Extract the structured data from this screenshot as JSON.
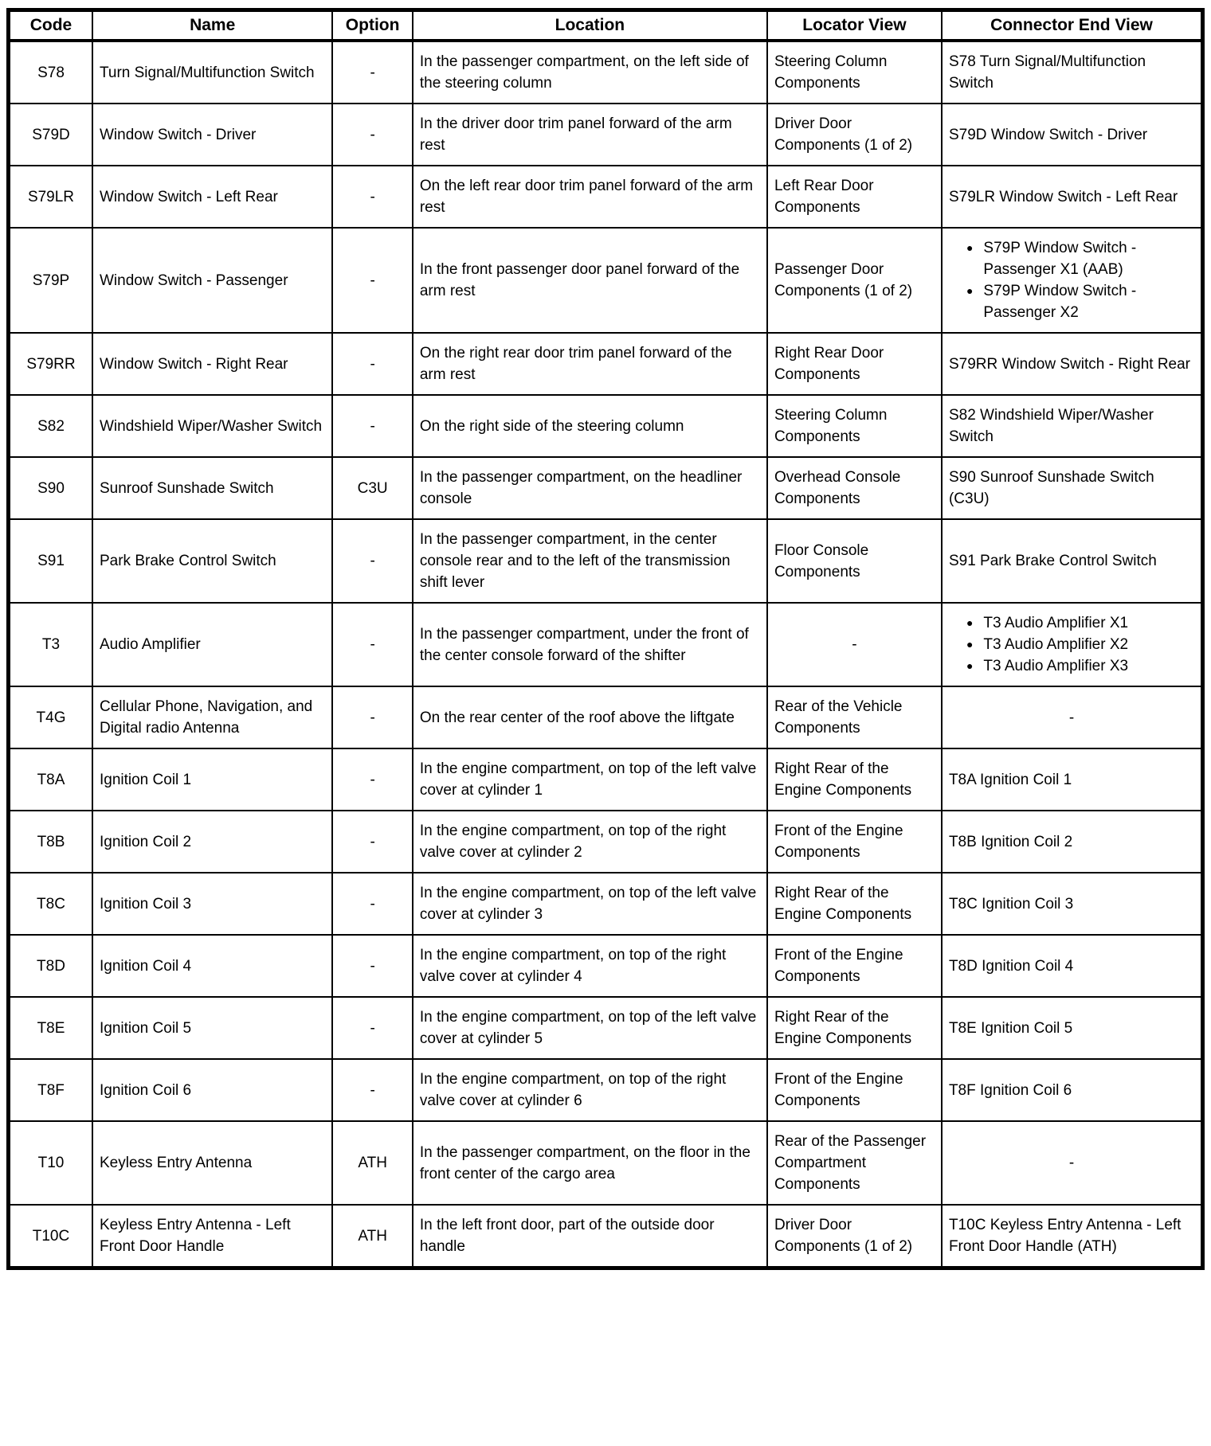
{
  "colors": {
    "background": "#ffffff",
    "text": "#000000",
    "border": "#000000"
  },
  "table": {
    "columns": [
      "Code",
      "Name",
      "Option",
      "Location",
      "Locator View",
      "Connector End View"
    ],
    "rows": [
      {
        "code": "S78",
        "name": "Turn Signal/Multifunction Switch",
        "option": "-",
        "location": "In the passenger compartment, on the left side of the steering column",
        "locator_view": "Steering Column Components",
        "connector_end_view": [
          "S78 Turn Signal/Multifunction Switch"
        ]
      },
      {
        "code": "S79D",
        "name": "Window Switch - Driver",
        "option": "-",
        "location": "In the driver door trim panel forward of the arm rest",
        "locator_view": "Driver Door Components (1 of 2)",
        "connector_end_view": [
          "S79D Window Switch - Driver"
        ]
      },
      {
        "code": "S79LR",
        "name": "Window Switch - Left Rear",
        "option": "-",
        "location": "On the left rear door trim panel forward of the arm rest",
        "locator_view": "Left Rear Door Components",
        "connector_end_view": [
          "S79LR Window Switch - Left Rear"
        ]
      },
      {
        "code": "S79P",
        "name": "Window Switch - Passenger",
        "option": "-",
        "location": "In the front passenger door panel forward of the arm rest",
        "locator_view": "Passenger Door Components (1 of 2)",
        "connector_end_view": [
          "S79P Window Switch - Passenger X1 (AAB)",
          "S79P Window Switch - Passenger X2"
        ]
      },
      {
        "code": "S79RR",
        "name": "Window Switch - Right Rear",
        "option": "-",
        "location": "On the right rear door trim panel forward of the arm rest",
        "locator_view": "Right Rear Door Components",
        "connector_end_view": [
          "S79RR Window Switch - Right Rear"
        ]
      },
      {
        "code": "S82",
        "name": "Windshield Wiper/Washer Switch",
        "option": "-",
        "location": "On the right side of the steering column",
        "locator_view": "Steering Column Components",
        "connector_end_view": [
          "S82 Windshield Wiper/Washer Switch"
        ]
      },
      {
        "code": "S90",
        "name": "Sunroof Sunshade Switch",
        "option": "C3U",
        "location": "In the passenger compartment, on the headliner console",
        "locator_view": "Overhead Console Components",
        "connector_end_view": [
          "S90 Sunroof Sunshade Switch (C3U)"
        ]
      },
      {
        "code": "S91",
        "name": "Park Brake Control Switch",
        "option": "-",
        "location": "In the passenger compartment, in the center console rear and to the left of the transmission shift lever",
        "locator_view": "Floor Console Components",
        "connector_end_view": [
          "S91 Park Brake Control Switch"
        ]
      },
      {
        "code": "T3",
        "name": "Audio Amplifier",
        "option": "-",
        "location": "In the passenger compartment, under the front of the center console forward of the shifter",
        "locator_view": "-",
        "connector_end_view": [
          "T3 Audio Amplifier X1",
          "T3 Audio Amplifier X2",
          "T3 Audio Amplifier X3"
        ]
      },
      {
        "code": "T4G",
        "name": "Cellular Phone, Navigation, and Digital radio Antenna",
        "option": "-",
        "location": "On the rear center of the roof above the liftgate",
        "locator_view": "Rear of the Vehicle Components",
        "connector_end_view": [
          "-"
        ]
      },
      {
        "code": "T8A",
        "name": "Ignition Coil 1",
        "option": "-",
        "location": "In the engine compartment, on top of the left valve cover at cylinder 1",
        "locator_view": "Right Rear of the Engine Components",
        "connector_end_view": [
          "T8A Ignition Coil 1"
        ]
      },
      {
        "code": "T8B",
        "name": "Ignition Coil 2",
        "option": "-",
        "location": "In the engine compartment, on top of the right valve cover at cylinder 2",
        "locator_view": "Front of the Engine Components",
        "connector_end_view": [
          "T8B Ignition Coil 2"
        ]
      },
      {
        "code": "T8C",
        "name": "Ignition Coil 3",
        "option": "-",
        "location": "In the engine compartment, on top of the left valve cover at cylinder 3",
        "locator_view": "Right Rear of the Engine Components",
        "connector_end_view": [
          "T8C Ignition Coil 3"
        ]
      },
      {
        "code": "T8D",
        "name": "Ignition Coil 4",
        "option": "-",
        "location": "In the engine compartment, on top of the right valve cover at cylinder 4",
        "locator_view": "Front of the Engine Components",
        "connector_end_view": [
          "T8D Ignition Coil 4"
        ]
      },
      {
        "code": "T8E",
        "name": "Ignition Coil 5",
        "option": "-",
        "location": "In the engine compartment, on top of the left valve cover at cylinder 5",
        "locator_view": "Right Rear of the Engine Components",
        "connector_end_view": [
          "T8E Ignition Coil 5"
        ]
      },
      {
        "code": "T8F",
        "name": "Ignition Coil 6",
        "option": "-",
        "location": "In the engine compartment, on top of the right valve cover at cylinder 6",
        "locator_view": "Front of the Engine Components",
        "connector_end_view": [
          "T8F Ignition Coil 6"
        ]
      },
      {
        "code": "T10",
        "name": "Keyless Entry Antenna",
        "option": "ATH",
        "location": "In the passenger compartment, on the floor in the front center of the cargo area",
        "locator_view": "Rear of the Passenger Compartment Components",
        "connector_end_view": [
          "-"
        ]
      },
      {
        "code": "T10C",
        "name": "Keyless Entry Antenna - Left Front Door Handle",
        "option": "ATH",
        "location": "In the left front door, part of the outside door handle",
        "locator_view": "Driver Door Components (1 of 2)",
        "connector_end_view": [
          "T10C Keyless Entry Antenna - Left Front Door Handle (ATH)"
        ]
      }
    ]
  }
}
